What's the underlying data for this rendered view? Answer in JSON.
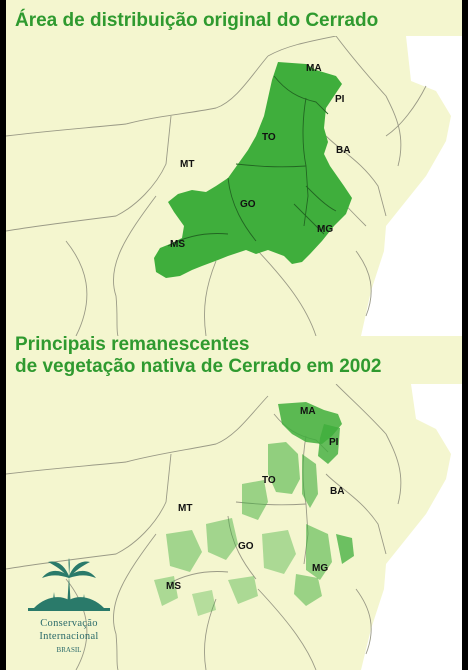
{
  "top_panel": {
    "title": "Área de distribuição original do Cerrado",
    "labels": {
      "ma": "MA",
      "pi": "PI",
      "to": "TO",
      "ba": "BA",
      "mt": "MT",
      "go": "GO",
      "mg": "MG",
      "ms": "MS"
    }
  },
  "bottom_panel": {
    "title_line1": "Principais remanescentes",
    "title_line2": "de vegetação nativa de Cerrado em 2002",
    "labels": {
      "ma": "MA",
      "pi": "PI",
      "to": "TO",
      "ba": "BA",
      "mt": "MT",
      "go": "GO",
      "mg": "MG",
      "ms": "MS"
    }
  },
  "logo": {
    "line1": "Conservação",
    "line2": "Internacional",
    "country": "BRASIL"
  },
  "colors": {
    "background": "#f4f6cf",
    "cerrado_green": "#3fae3c",
    "title_green": "#2f9a2f",
    "border_gray": "#9a9a86"
  }
}
